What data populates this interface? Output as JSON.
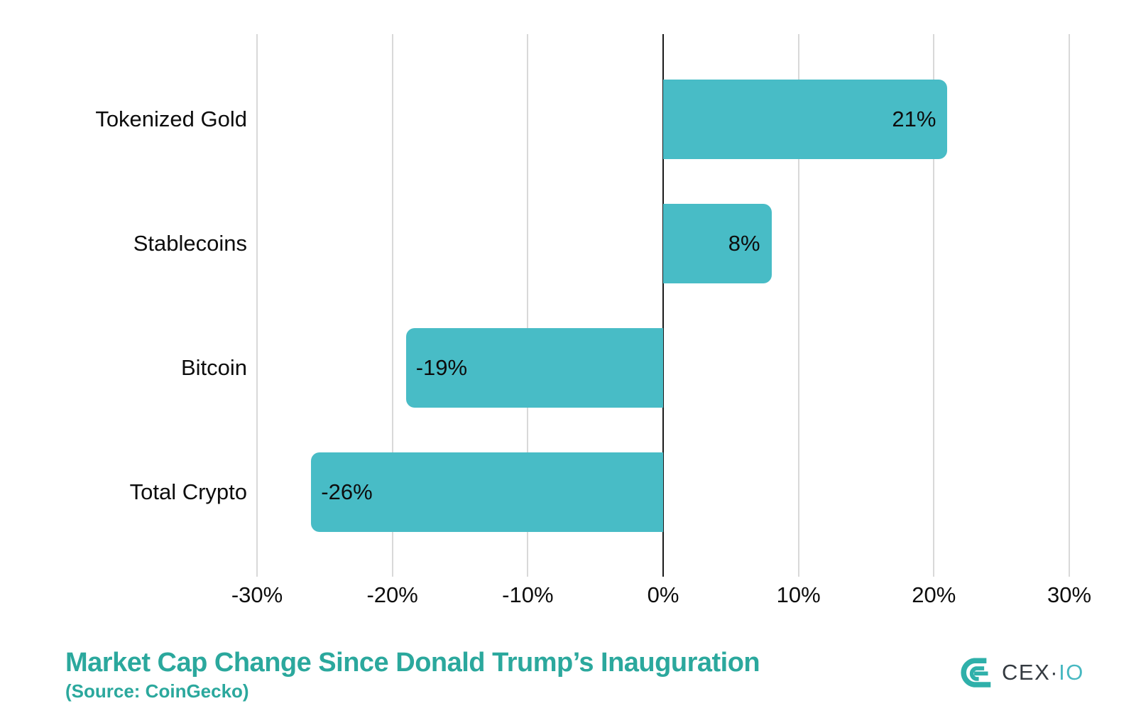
{
  "chart_data": {
    "type": "bar",
    "orientation": "horizontal",
    "title": "Market Cap Change Since Donald Trump’s Inauguration",
    "subtitle": "(Source: CoinGecko)",
    "categories": [
      "Tokenized Gold",
      "Stablecoins",
      "Bitcoin",
      "Total Crypto"
    ],
    "values": [
      21,
      8,
      -19,
      -26
    ],
    "value_labels": [
      "21%",
      "8%",
      "-19%",
      "-26%"
    ],
    "xlim": [
      -30,
      30
    ],
    "xticks": [
      -30,
      -20,
      -10,
      0,
      10,
      20,
      30
    ],
    "xtick_labels": [
      "-30%",
      "-20%",
      "-10%",
      "0%",
      "10%",
      "20%",
      "30%"
    ],
    "xlabel": "",
    "ylabel": "",
    "grid": true,
    "legend": false,
    "bar_color": "#48bcc6",
    "gridline_color": "#d9d9d9",
    "zero_line_color": "#1a1a1a",
    "label_color": "#0d0d0d",
    "title_color": "#2ba89d"
  },
  "logo": {
    "icon": "cexio-logo-icon",
    "cex_text": "CEX",
    "dot": "·",
    "io_text": "IO",
    "icon_color": "#2fb0aa",
    "cex_color": "#343a40",
    "io_color": "#47b8c1"
  }
}
